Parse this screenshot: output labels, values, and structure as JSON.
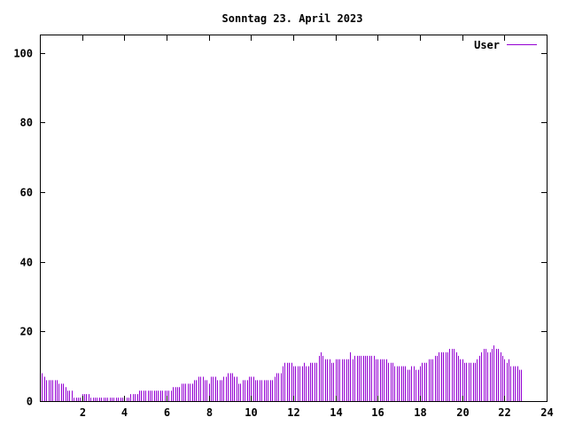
{
  "chart_data": {
    "type": "bar",
    "title": "Sonntag 23. April 2023",
    "xlabel": "",
    "ylabel": "",
    "xlim": [
      0,
      24
    ],
    "ylim": [
      0,
      105
    ],
    "x_ticks": [
      2,
      4,
      6,
      8,
      10,
      12,
      14,
      16,
      18,
      20,
      22,
      24
    ],
    "y_ticks": [
      0,
      20,
      40,
      60,
      80,
      100
    ],
    "legend_position": "top-right",
    "series": [
      {
        "name": "User",
        "color": "#9400d3",
        "interval_hours": 0.1,
        "values": [
          8,
          8,
          7,
          6,
          6,
          6,
          6,
          6,
          6,
          5,
          5,
          5,
          4,
          3,
          3,
          3,
          1,
          1,
          1,
          1,
          2,
          2,
          2,
          2,
          1,
          1,
          1,
          1,
          1,
          1,
          1,
          1,
          1,
          1,
          1,
          1,
          1,
          1,
          1,
          1,
          1,
          1,
          1,
          2,
          2,
          2,
          2,
          3,
          3,
          3,
          3,
          3,
          3,
          3,
          3,
          3,
          3,
          3,
          3,
          3,
          3,
          3,
          3,
          4,
          4,
          4,
          4,
          5,
          5,
          5,
          5,
          5,
          5,
          6,
          6,
          7,
          7,
          7,
          6,
          6,
          5,
          7,
          7,
          7,
          6,
          6,
          6,
          7,
          7,
          8,
          8,
          8,
          7,
          7,
          5,
          5,
          6,
          6,
          6,
          7,
          7,
          7,
          6,
          6,
          6,
          6,
          6,
          6,
          6,
          6,
          6,
          7,
          8,
          8,
          8,
          10,
          11,
          11,
          11,
          11,
          10,
          10,
          10,
          10,
          10,
          11,
          10,
          10,
          11,
          11,
          11,
          11,
          13,
          14,
          13,
          12,
          12,
          12,
          11,
          11,
          12,
          12,
          12,
          12,
          12,
          12,
          12,
          14,
          12,
          13,
          13,
          13,
          13,
          13,
          13,
          13,
          13,
          13,
          13,
          12,
          12,
          12,
          12,
          12,
          12,
          11,
          11,
          11,
          10,
          10,
          10,
          10,
          10,
          10,
          9,
          9,
          10,
          10,
          9,
          9,
          10,
          11,
          11,
          11,
          12,
          12,
          12,
          13,
          13,
          14,
          14,
          14,
          14,
          14,
          15,
          15,
          15,
          14,
          13,
          12,
          12,
          11,
          11,
          11,
          11,
          11,
          11,
          12,
          13,
          14,
          15,
          15,
          14,
          14,
          15,
          16,
          15,
          15,
          14,
          13,
          12,
          11,
          12,
          10,
          10,
          10,
          10,
          9,
          9
        ]
      }
    ]
  }
}
